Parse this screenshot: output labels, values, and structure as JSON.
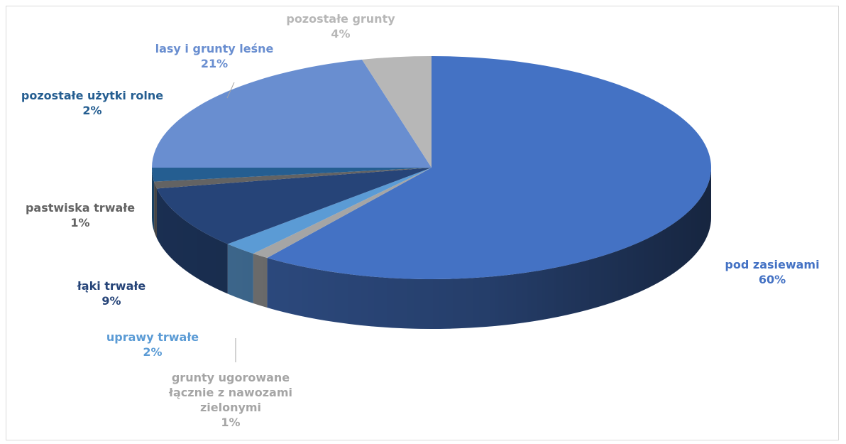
{
  "chart_data": {
    "type": "pie",
    "title": "",
    "slices": [
      {
        "label": "pod zasiewami",
        "value": 60,
        "value_label": "60%",
        "color": "#4472c4",
        "label_color": "#4472c4"
      },
      {
        "label": "grunty ugorowane łącznie z nawozami zielonymi",
        "label_lines": [
          "grunty ugorowane",
          "łącznie z nawozami",
          "zielonymi"
        ],
        "value": 1,
        "value_label": "1%",
        "color": "#a5a5a5",
        "label_color": "#a5a5a5"
      },
      {
        "label": "uprawy trwałe",
        "value": 2,
        "value_label": "2%",
        "color": "#5b9bd5",
        "label_color": "#5b9bd5"
      },
      {
        "label": "łąki trwałe",
        "value": 9,
        "value_label": "9%",
        "color": "#264478",
        "label_color": "#264478"
      },
      {
        "label": "pastwiska trwałe",
        "value": 1,
        "value_label": "1%",
        "color": "#636363",
        "label_color": "#636363"
      },
      {
        "label": "pozostałe użytki rolne",
        "value": 2,
        "value_label": "2%",
        "color": "#255e91",
        "label_color": "#255e91"
      },
      {
        "label": "lasy i grunty leśne",
        "value": 21,
        "value_label": "21%",
        "color": "#698ed0",
        "label_color": "#698ed0"
      },
      {
        "label": "pozostałe grunty",
        "value": 4,
        "value_label": "4%",
        "color": "#b7b7b7",
        "label_color": "#b7b7b7"
      }
    ],
    "legend": "none",
    "style": "3d-pie"
  }
}
